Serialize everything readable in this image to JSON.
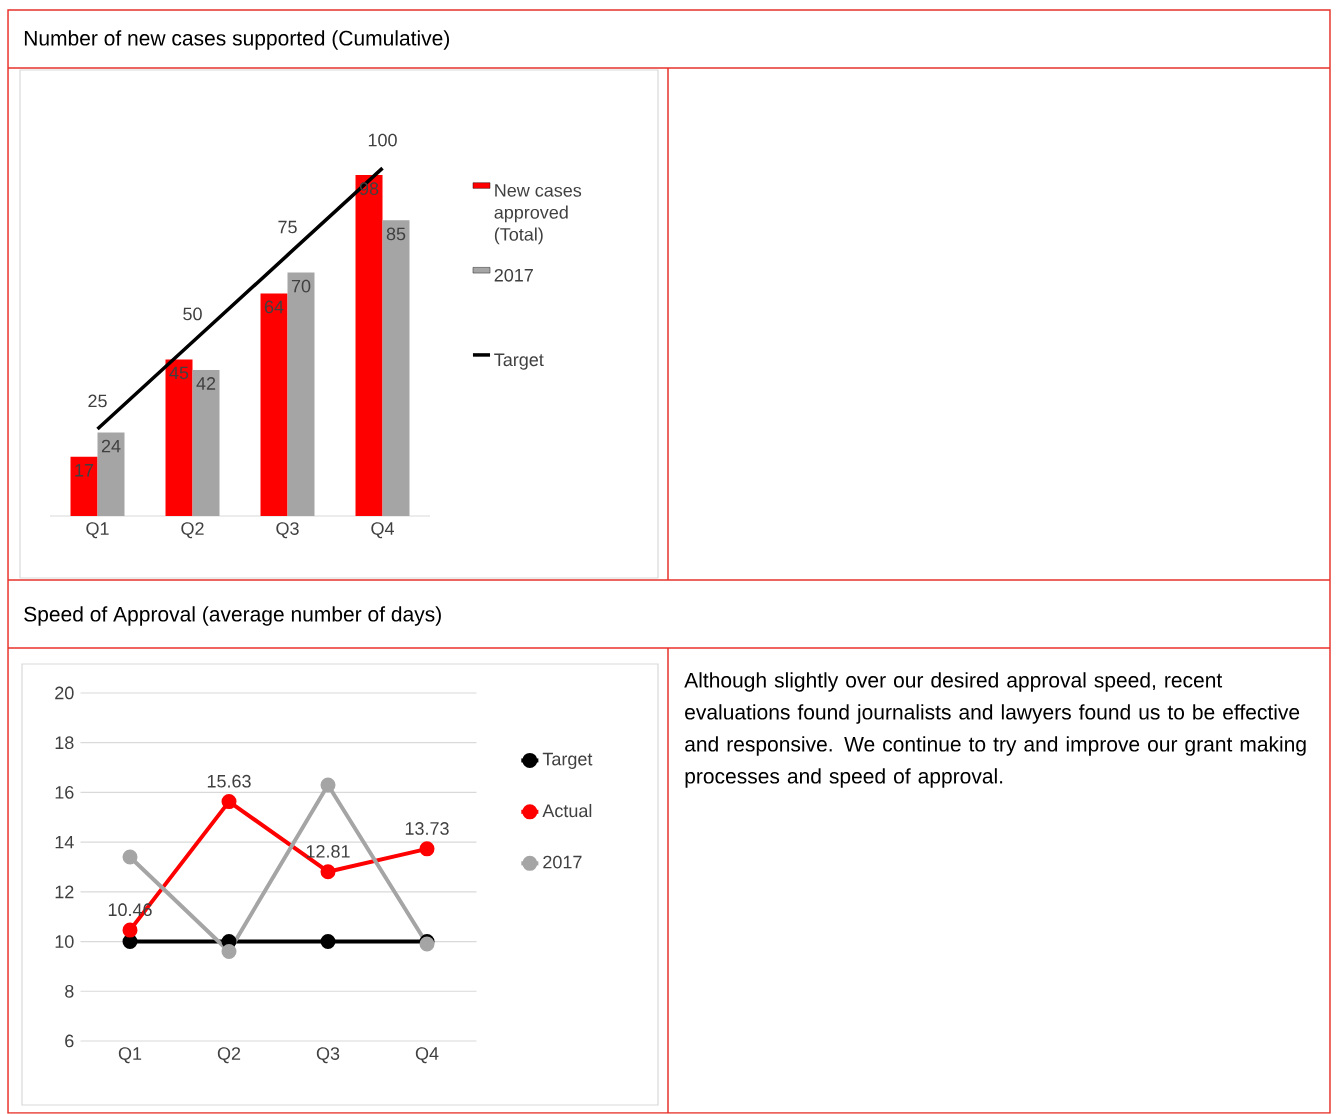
{
  "chart_data": [
    {
      "type": "bar",
      "title": "Number of new cases supported (Cumulative)",
      "categories": [
        "Q1",
        "Q2",
        "Q3",
        "Q4"
      ],
      "data_labels": true,
      "legend": "right",
      "series": [
        {
          "name": "New cases approved (Total)",
          "color": "#ff0000",
          "values": [
            17,
            45,
            64,
            98
          ]
        },
        {
          "name": "2017",
          "color": "#a5a5a5",
          "values": [
            24,
            42,
            70,
            85
          ]
        },
        {
          "name": "Target",
          "type": "line",
          "color": "#000000",
          "values": [
            25,
            50,
            75,
            100
          ]
        }
      ]
    },
    {
      "type": "line",
      "title": "Speed of Approval (average number of days)",
      "categories": [
        "Q1",
        "Q2",
        "Q3",
        "Q4"
      ],
      "ylim": [
        6,
        20
      ],
      "yticks": [
        6,
        8,
        10,
        12,
        14,
        16,
        18,
        20
      ],
      "grid": "y",
      "legend": "right",
      "marker": "circle",
      "series": [
        {
          "name": "Target",
          "color": "#000000",
          "values": [
            10,
            10,
            10,
            10
          ]
        },
        {
          "name": "Actual",
          "color": "#ff0000",
          "values": [
            10.46,
            15.63,
            12.81,
            13.73
          ],
          "value_labels": [
            "10.46",
            "15.63",
            "12.81",
            "13.73"
          ]
        },
        {
          "name": "2017",
          "color": "#a5a5a5",
          "values": [
            13.4,
            9.6,
            16.3,
            9.9
          ]
        }
      ]
    },
    {
      "type": "other",
      "annotations": [
        "Although slightly over our desired approval speed, recent evaluations found journalists and lawyers found us to be effective and responsive. We continue to try and improve our grant making processes and speed of approval."
      ]
    }
  ]
}
